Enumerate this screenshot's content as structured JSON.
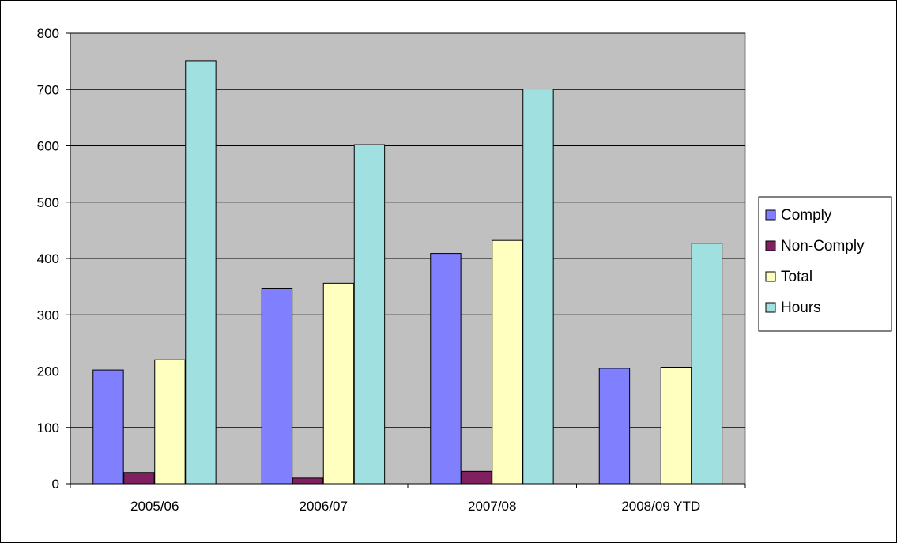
{
  "chart_data": {
    "type": "bar",
    "title": "",
    "xlabel": "",
    "ylabel": "",
    "categories": [
      "2005/06",
      "2006/07",
      "2007/08",
      "2008/09 YTD"
    ],
    "series": [
      {
        "name": "Comply",
        "color": "#8080FF",
        "values": [
          202,
          346,
          409,
          205
        ]
      },
      {
        "name": "Non-Comply",
        "color": "#802060",
        "values": [
          20,
          10,
          22,
          0
        ]
      },
      {
        "name": "Total",
        "color": "#FFFFC0",
        "values": [
          220,
          356,
          432,
          207
        ]
      },
      {
        "name": "Hours",
        "color": "#A0E0E0",
        "values": [
          751,
          602,
          701,
          427
        ]
      }
    ],
    "ylim": [
      0,
      800
    ],
    "yticks": [
      0,
      100,
      200,
      300,
      400,
      500,
      600,
      700,
      800
    ],
    "plot_background": "#C0C0C0",
    "grid": true,
    "legend_position": "right"
  }
}
